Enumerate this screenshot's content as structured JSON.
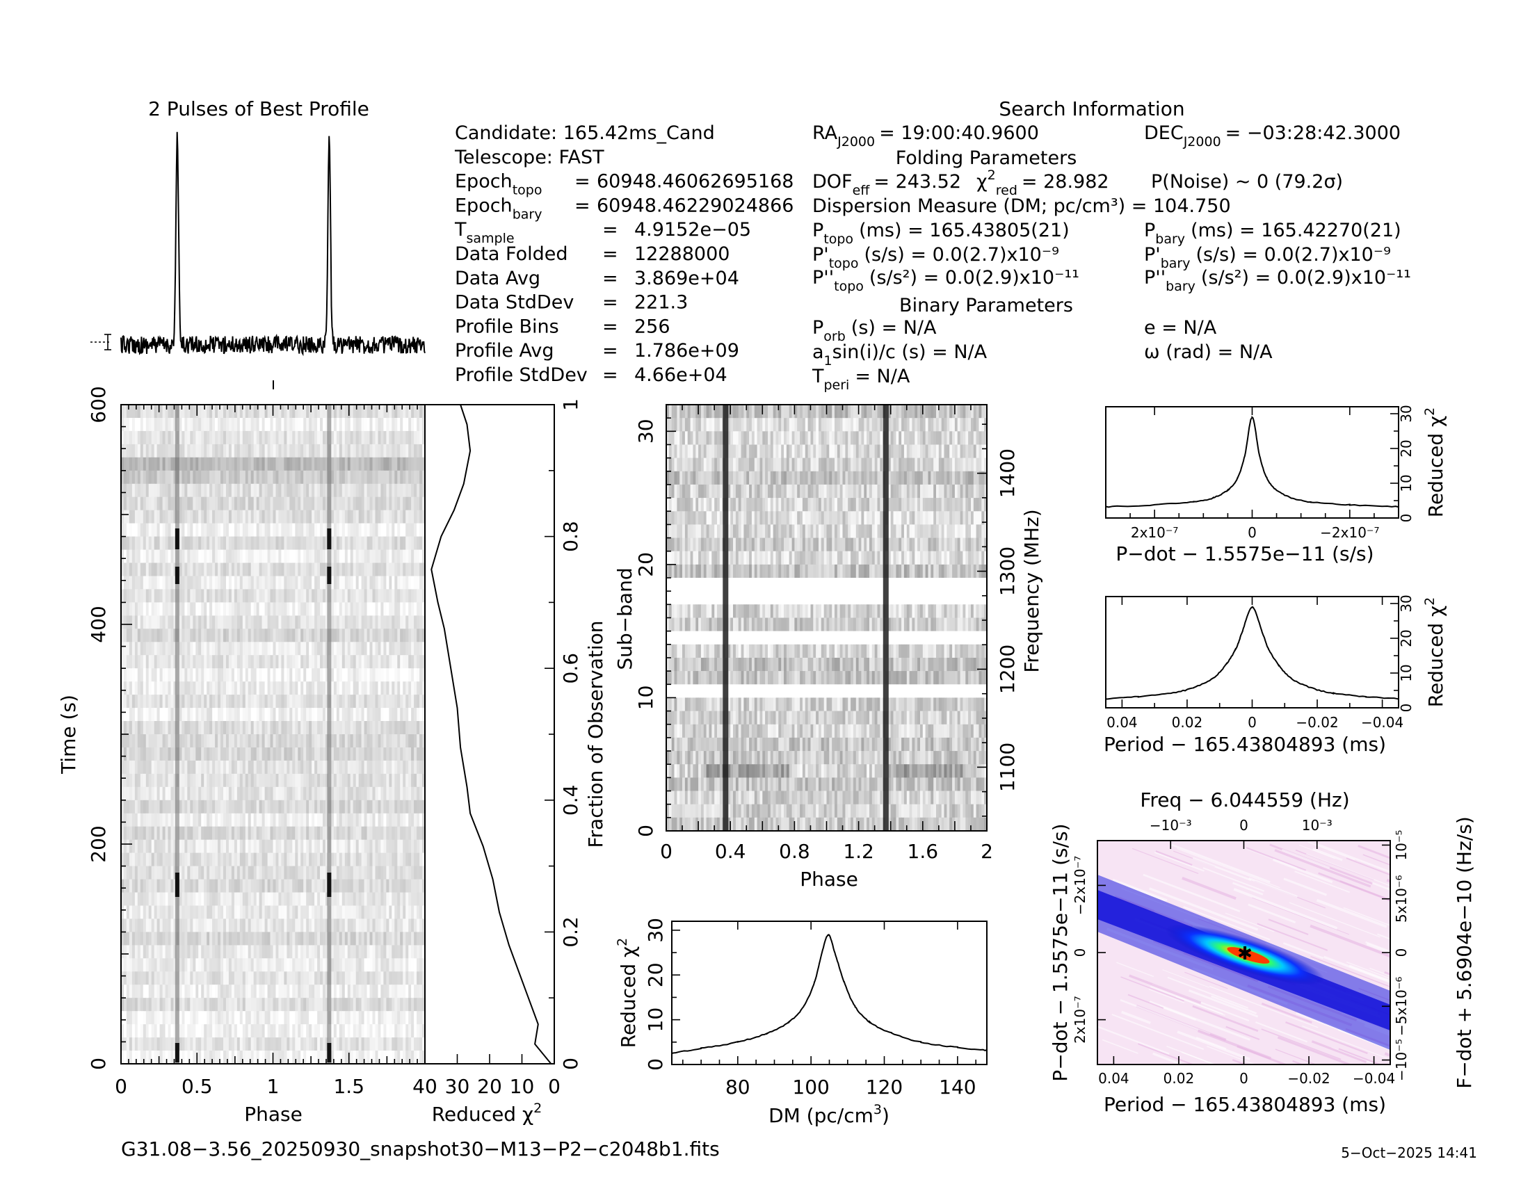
{
  "window": {
    "filename": "G31.08−3.56_20250930_snapshot30−M13−P2−c2048b1.fits",
    "date": "5−Oct−2025 14:41"
  },
  "headers": {
    "best_profile": "2 Pulses of Best Profile",
    "search_info": "Search Information",
    "folding": "Folding Parameters",
    "binary": "Binary Parameters"
  },
  "info_left": [
    {
      "label": "Candidate:  165.42ms_Cand",
      "value": ""
    },
    {
      "label": "Telescope:  FAST",
      "value": ""
    },
    {
      "label": "Epoch",
      "sub": "topo",
      "eq": "=",
      "value": "60948.46062695168"
    },
    {
      "label": "Epoch",
      "sub": "bary",
      "eq": "=",
      "value": "60948.46229024866"
    },
    {
      "label": "T",
      "sub": "sample",
      "eq": "=",
      "value": "4.9152e−05"
    },
    {
      "label": "Data Folded",
      "eq": "=",
      "value": "12288000"
    },
    {
      "label": "Data Avg",
      "eq": "=",
      "value": "3.869e+04"
    },
    {
      "label": "Data StdDev",
      "eq": "=",
      "value": "221.3"
    },
    {
      "label": "Profile Bins",
      "eq": "=",
      "value": "256"
    },
    {
      "label": "Profile Avg",
      "eq": "=",
      "value": "1.786e+09"
    },
    {
      "label": "Profile StdDev",
      "eq": "=",
      "value": "4.66e+04"
    }
  ],
  "info_mid": {
    "ra": "= 19:00:40.9600",
    "dof": "= 243.52",
    "chi2": "= 28.982",
    "dm_line": "Dispersion Measure (DM; pc/cm³) = 104.750",
    "p_topo": "(ms) =  165.43805(21)",
    "pd_topo": "(s/s) = 0.0(2.7)x10⁻⁹",
    "pdd_topo": "(s/s²) = 0.0(2.9)x10⁻¹¹",
    "p_orb": "(s) = N/A",
    "a1": "sin(i)/c (s) = N/A",
    "t_peri": "= N/A"
  },
  "info_right": {
    "dec": "= −03:28:42.3000",
    "pnoise": "P(Noise) ∼ 0    (79.2σ)",
    "p_bary": "(ms) =  165.42270(21)",
    "pd_bary": "(s/s) = 0.0(2.7)x10⁻⁹",
    "pdd_bary": "(s/s²) = 0.0(2.9)x10⁻¹¹",
    "e": "e = N/A",
    "omega": "ω (rad) = N/A"
  },
  "colors": {
    "ink": "#000000",
    "grey": "#808080",
    "dm_map_low": "#f4d8f0",
    "dm_map_mid": "#1a1aee",
    "dm_map_peak": "#ff2200"
  },
  "chart_data": [
    {
      "id": "profile",
      "type": "line",
      "title": "2 Pulses of Best Profile",
      "x": [
        0,
        2
      ],
      "peaks_phase": [
        0.37,
        1.37
      ],
      "peak_height": 1.0,
      "note_errorbar": true
    },
    {
      "id": "time_phase",
      "type": "heatmap",
      "xlabel": "Phase",
      "ylabel": "Time (s)",
      "xlim": [
        0,
        2
      ],
      "ylim": [
        0,
        600
      ],
      "xticks": [
        "0",
        "0.5",
        "1",
        "1.5"
      ],
      "yticks": [
        "0",
        "200",
        "400",
        "600"
      ],
      "pulse_phase": [
        0.37,
        1.37
      ]
    },
    {
      "id": "time_chi2",
      "type": "line",
      "xlabel": "Reduced χ²",
      "ylabel": "Fraction of Observation",
      "xticks": [
        "40",
        "30",
        "20",
        "10",
        "0"
      ],
      "yticks": [
        "0",
        "0.2",
        "0.4",
        "0.6",
        "0.8",
        "1"
      ],
      "x_reduced_chi2": [
        1,
        6,
        5,
        8,
        14,
        17,
        19,
        22,
        26,
        27,
        29,
        30,
        32,
        34,
        36,
        38,
        35,
        31,
        28,
        26,
        27,
        29
      ],
      "y_fraction": [
        0.0,
        0.03,
        0.06,
        0.1,
        0.18,
        0.23,
        0.28,
        0.33,
        0.38,
        0.42,
        0.48,
        0.54,
        0.6,
        0.66,
        0.7,
        0.75,
        0.8,
        0.84,
        0.88,
        0.93,
        0.97,
        1.0
      ]
    },
    {
      "id": "subband_phase",
      "type": "heatmap",
      "xlabel": "Phase",
      "ylabel": "Sub-band",
      "ylabel_right": "Frequency (MHz)",
      "xlim": [
        0,
        2
      ],
      "ylim": [
        0,
        32
      ],
      "xticks": [
        "0",
        "0.4",
        "0.8",
        "1.2",
        "1.6",
        "2"
      ],
      "yticks": [
        "0",
        "10",
        "20",
        "30"
      ],
      "freq_ticks": [
        "1100",
        "1200",
        "1300",
        "1400"
      ],
      "masked_subbands": [
        10,
        14,
        17,
        18
      ],
      "pulse_phase": [
        0.37,
        1.37
      ]
    },
    {
      "id": "dm_chi2",
      "type": "line",
      "xlabel": "DM (pc/cm³)",
      "ylabel": "Reduced χ²",
      "xlim": [
        62,
        148
      ],
      "ylim": [
        0,
        32
      ],
      "xticks": [
        "80",
        "100",
        "120",
        "140"
      ],
      "yticks": [
        "0",
        "10",
        "20",
        "30"
      ],
      "x": [
        62,
        70,
        80,
        88,
        94,
        98,
        101,
        103,
        104.75,
        106.5,
        109,
        112,
        116,
        122,
        130,
        140,
        148
      ],
      "y": [
        2.5,
        3.6,
        5.0,
        7.0,
        9.5,
        13.0,
        18.5,
        25.0,
        29.0,
        25.0,
        18.5,
        13.0,
        9.5,
        7.0,
        5.0,
        3.8,
        3.2
      ]
    },
    {
      "id": "pdot_chi2",
      "type": "line",
      "xlabel": "P−dot − 1.5575e−11 (s/s)",
      "ylabel": "Reduced χ²",
      "xlim": [
        3e-07,
        -3e-07
      ],
      "ylim": [
        0,
        32
      ],
      "xticks": [
        "2x10⁻⁷",
        "0",
        "−2x10⁻⁷"
      ],
      "yticks": [
        "0",
        "10",
        "20",
        "30"
      ],
      "x": [
        3e-07,
        2e-07,
        1.2e-07,
        8e-08,
        5e-08,
        3e-08,
        1.5e-08,
        0,
        -1.5e-08,
        -3e-08,
        -5e-08,
        -8e-08,
        -1.2e-07,
        -2e-07,
        -3e-07
      ],
      "y": [
        3.2,
        3.8,
        4.6,
        5.8,
        8.0,
        11.5,
        18.0,
        29.0,
        18.0,
        11.5,
        8.0,
        5.8,
        4.6,
        3.8,
        3.2
      ]
    },
    {
      "id": "period_chi2",
      "type": "line",
      "xlabel": "Period − 165.43804893 (ms)",
      "ylabel": "Reduced χ²",
      "xlim": [
        0.045,
        -0.045
      ],
      "ylim": [
        0,
        32
      ],
      "xticks": [
        "0.04",
        "0.02",
        "0",
        "−0.02",
        "−0.04"
      ],
      "yticks": [
        "0",
        "10",
        "20",
        "30"
      ],
      "x": [
        0.045,
        0.035,
        0.025,
        0.018,
        0.012,
        0.008,
        0.005,
        0.003,
        0.0,
        -0.003,
        -0.005,
        -0.008,
        -0.012,
        -0.018,
        -0.025,
        -0.035,
        -0.045
      ],
      "y": [
        2.6,
        3.2,
        4.2,
        5.8,
        8.5,
        12.5,
        17.0,
        22.0,
        29.0,
        22.0,
        17.0,
        12.5,
        8.5,
        5.8,
        4.2,
        3.2,
        2.6
      ]
    },
    {
      "id": "period_pdot",
      "type": "heatmap",
      "title": "Freq − 6.044559 (Hz)",
      "xlabel": "Period − 165.43804893 (ms)",
      "ylabel": "P−dot − 1.5575e−11 (s/s)",
      "ylabel_right": "F−dot + 5.6904e−10 (Hz/s)",
      "xticks": [
        "0.04",
        "0.02",
        "0",
        "−0.02",
        "−0.04"
      ],
      "top_ticks": [
        "−10⁻³",
        "0",
        "10⁻³"
      ],
      "yticks": [
        "−2x10⁻⁷",
        "0",
        "2x10⁻⁷"
      ],
      "right_ticks": [
        "10⁻⁵",
        "5x10⁻⁶",
        "0",
        "−5x10⁻⁶",
        "−10⁻⁵"
      ],
      "best": [
        0,
        0
      ]
    }
  ]
}
